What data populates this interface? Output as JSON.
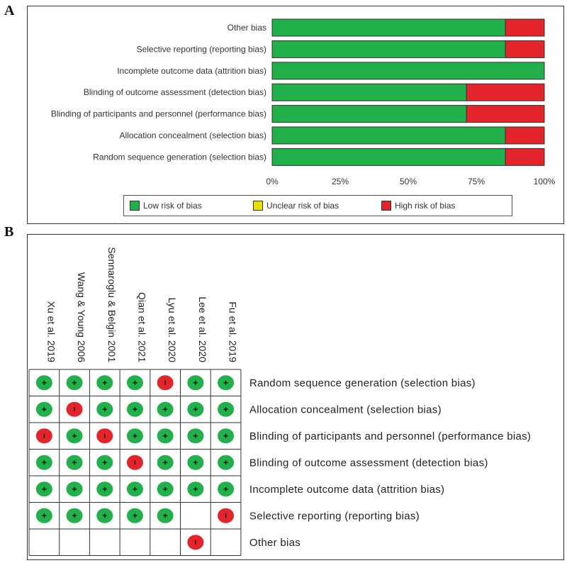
{
  "panels": {
    "a_letter": "A",
    "b_letter": "B"
  },
  "colors": {
    "low": "#22b04a",
    "unclear": "#e8e000",
    "high": "#e3242b"
  },
  "chart_data": [
    {
      "type": "bar",
      "orientation": "horizontal-stacked-percent",
      "categories": [
        "Other bias",
        "Selective reporting (reporting bias)",
        "Incomplete outcome data (attrition bias)",
        "Blinding of outcome assessment (detection bias)",
        "Blinding of participants and personnel (performance bias)",
        "Allocation concealment (selection bias)",
        "Random sequence generation (selection bias)"
      ],
      "series": [
        {
          "name": "Low risk of bias",
          "color": "#22b04a",
          "values": [
            85.7,
            85.7,
            100,
            71.4,
            71.4,
            85.7,
            85.7
          ]
        },
        {
          "name": "Unclear risk of bias",
          "color": "#e8e000",
          "values": [
            0,
            0,
            0,
            0,
            0,
            0,
            0
          ]
        },
        {
          "name": "High risk of bias",
          "color": "#e3242b",
          "values": [
            14.3,
            14.3,
            0,
            28.6,
            28.6,
            14.3,
            14.3
          ]
        }
      ],
      "x_ticks": [
        "0%",
        "25%",
        "50%",
        "75%",
        "100%"
      ],
      "xlim": [
        0,
        100
      ],
      "legend_position": "bottom"
    },
    {
      "type": "table",
      "studies": [
        "Xu et al. 2019",
        "Wang & Young 2006",
        "Sennaroglu & Belgin 2001",
        "Qian et al. 2021",
        "Lyu et al. 2020",
        "Lee et al. 2020",
        "Fu et al. 2019"
      ],
      "domains": [
        "Random sequence generation (selection bias)",
        "Allocation concealment (selection bias)",
        "Blinding of participants and personnel (performance bias)",
        "Blinding of outcome assessment (detection bias)",
        "Incomplete outcome data (attrition bias)",
        "Selective reporting (reporting bias)",
        "Other bias"
      ],
      "judgements": [
        [
          "low",
          "low",
          "low",
          "low",
          "high",
          "low",
          "low"
        ],
        [
          "low",
          "high",
          "low",
          "low",
          "low",
          "low",
          "low"
        ],
        [
          "high",
          "low",
          "high",
          "low",
          "low",
          "low",
          "low"
        ],
        [
          "low",
          "low",
          "low",
          "high",
          "low",
          "low",
          "low"
        ],
        [
          "low",
          "low",
          "low",
          "low",
          "low",
          "low",
          "low"
        ],
        [
          "low",
          "low",
          "low",
          "low",
          "low",
          "",
          "high"
        ],
        [
          "",
          "",
          "",
          "",
          "",
          "high",
          ""
        ]
      ]
    }
  ]
}
